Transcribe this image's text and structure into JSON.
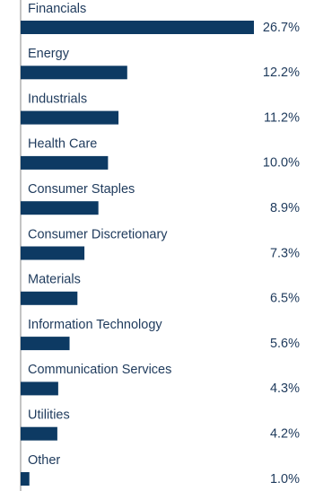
{
  "chart_data": {
    "type": "bar",
    "orientation": "horizontal",
    "categories": [
      "Financials",
      "Energy",
      "Industrials",
      "Health Care",
      "Consumer Staples",
      "Consumer Discretionary",
      "Materials",
      "Information Technology",
      "Communication Services",
      "Utilities",
      "Other"
    ],
    "values": [
      26.7,
      12.2,
      11.2,
      10.0,
      8.9,
      7.3,
      6.5,
      5.6,
      4.3,
      4.2,
      1.0
    ],
    "value_labels": [
      "26.7%",
      "12.2%",
      "11.2%",
      "10.0%",
      "8.9%",
      "7.3%",
      "6.5%",
      "5.6%",
      "4.3%",
      "4.2%",
      "1.0%"
    ],
    "color": "#0d3a63"
  }
}
